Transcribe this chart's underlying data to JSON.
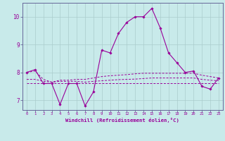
{
  "background_color": "#c8eaea",
  "grid_color": "#aacccc",
  "line_color": "#990099",
  "spine_color": "#666699",
  "xlim": [
    -0.5,
    23.5
  ],
  "ylim": [
    6.65,
    10.5
  ],
  "yticks": [
    7,
    8,
    9,
    10
  ],
  "xticks": [
    0,
    1,
    2,
    3,
    4,
    5,
    6,
    7,
    8,
    9,
    10,
    11,
    12,
    13,
    14,
    15,
    16,
    17,
    18,
    19,
    20,
    21,
    22,
    23
  ],
  "xlabel": "Windchill (Refroidissement éolien,°C)",
  "series": {
    "line1_x": [
      0,
      1,
      2,
      3,
      4,
      5,
      6,
      7,
      8,
      9,
      10,
      11,
      12,
      13,
      14,
      15,
      16,
      17,
      18,
      19,
      20,
      21,
      22,
      23
    ],
    "line1_y": [
      8.0,
      8.1,
      7.6,
      7.6,
      6.85,
      7.6,
      7.6,
      6.8,
      7.3,
      8.8,
      8.7,
      9.4,
      9.8,
      10.0,
      10.0,
      10.3,
      9.6,
      8.7,
      8.35,
      8.0,
      8.05,
      7.5,
      7.4,
      7.8
    ],
    "line2_x": [
      0,
      1,
      2,
      3,
      4,
      5,
      6,
      7,
      8,
      9,
      10,
      11,
      12,
      13,
      14,
      15,
      16,
      17,
      18,
      19,
      20,
      21,
      22,
      23
    ],
    "line2_y": [
      8.0,
      8.05,
      7.75,
      7.65,
      7.72,
      7.72,
      7.75,
      7.75,
      7.8,
      7.85,
      7.88,
      7.9,
      7.92,
      7.95,
      7.97,
      7.97,
      7.97,
      7.97,
      7.97,
      7.97,
      7.97,
      7.9,
      7.85,
      7.8
    ],
    "line3_x": [
      0,
      1,
      2,
      3,
      4,
      5,
      6,
      7,
      8,
      9,
      10,
      11,
      12,
      13,
      14,
      15,
      16,
      17,
      18,
      19,
      20,
      21,
      22,
      23
    ],
    "line3_y": [
      7.6,
      7.6,
      7.6,
      7.6,
      7.6,
      7.6,
      7.6,
      7.6,
      7.6,
      7.6,
      7.6,
      7.6,
      7.6,
      7.6,
      7.6,
      7.6,
      7.6,
      7.6,
      7.6,
      7.6,
      7.6,
      7.6,
      7.6,
      7.6
    ],
    "line4_x": [
      0,
      1,
      2,
      3,
      4,
      5,
      6,
      7,
      8,
      9,
      10,
      11,
      12,
      13,
      14,
      15,
      16,
      17,
      18,
      19,
      20,
      21,
      22,
      23
    ],
    "line4_y": [
      7.75,
      7.75,
      7.68,
      7.65,
      7.68,
      7.68,
      7.68,
      7.65,
      7.68,
      7.7,
      7.72,
      7.74,
      7.75,
      7.76,
      7.78,
      7.8,
      7.8,
      7.8,
      7.8,
      7.8,
      7.8,
      7.75,
      7.72,
      7.7
    ]
  }
}
